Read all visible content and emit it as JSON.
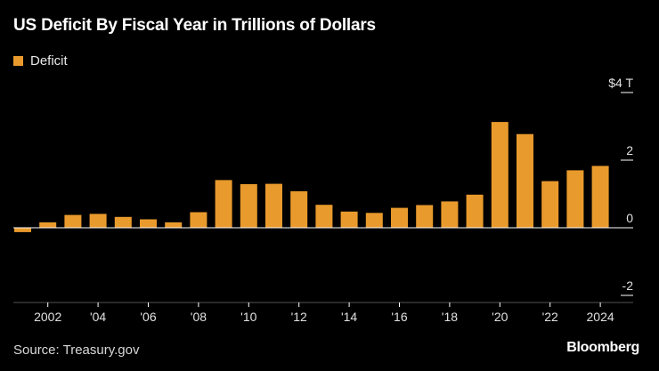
{
  "chart_data": {
    "type": "bar",
    "title": "US Deficit By Fiscal Year in Trillions of Dollars",
    "legend": {
      "placement": "top-left",
      "entries": [
        "Deficit"
      ]
    },
    "series": [
      {
        "name": "Deficit",
        "color": "#E99A2C",
        "x": [
          2001,
          2002,
          2003,
          2004,
          2005,
          2006,
          2007,
          2008,
          2009,
          2010,
          2011,
          2012,
          2013,
          2014,
          2015,
          2016,
          2017,
          2018,
          2019,
          2020,
          2021,
          2022,
          2023,
          2024
        ],
        "values": [
          -0.13,
          0.16,
          0.38,
          0.41,
          0.32,
          0.25,
          0.16,
          0.46,
          1.41,
          1.29,
          1.3,
          1.08,
          0.68,
          0.48,
          0.44,
          0.59,
          0.67,
          0.78,
          0.98,
          3.13,
          2.77,
          1.38,
          1.7,
          1.83
        ]
      }
    ],
    "y_axis": {
      "range": [
        -2,
        4
      ],
      "ticks": [
        {
          "value": 4,
          "label": "$4 T"
        },
        {
          "value": 2,
          "label": "2"
        },
        {
          "value": 0,
          "label": "0"
        },
        {
          "value": -2,
          "label": "-2"
        }
      ],
      "position": "right"
    },
    "x_axis": {
      "ticks": [
        {
          "value": 2002,
          "label": "2002"
        },
        {
          "value": 2004,
          "label": "'04"
        },
        {
          "value": 2006,
          "label": "'06"
        },
        {
          "value": 2008,
          "label": "'08"
        },
        {
          "value": 2010,
          "label": "'10"
        },
        {
          "value": 2012,
          "label": "'12"
        },
        {
          "value": 2014,
          "label": "'14"
        },
        {
          "value": 2016,
          "label": "'16"
        },
        {
          "value": 2018,
          "label": "'18"
        },
        {
          "value": 2020,
          "label": "'20"
        },
        {
          "value": 2022,
          "label": "'22"
        },
        {
          "value": 2024,
          "label": "2024"
        }
      ]
    },
    "grid": false
  },
  "footer": {
    "source": "Source: Treasury.gov",
    "brand": "Bloomberg"
  },
  "colors": {
    "background": "#000000",
    "bar": "#E99A2C",
    "axis": "#ffffff",
    "text": "#e0e0e0"
  }
}
